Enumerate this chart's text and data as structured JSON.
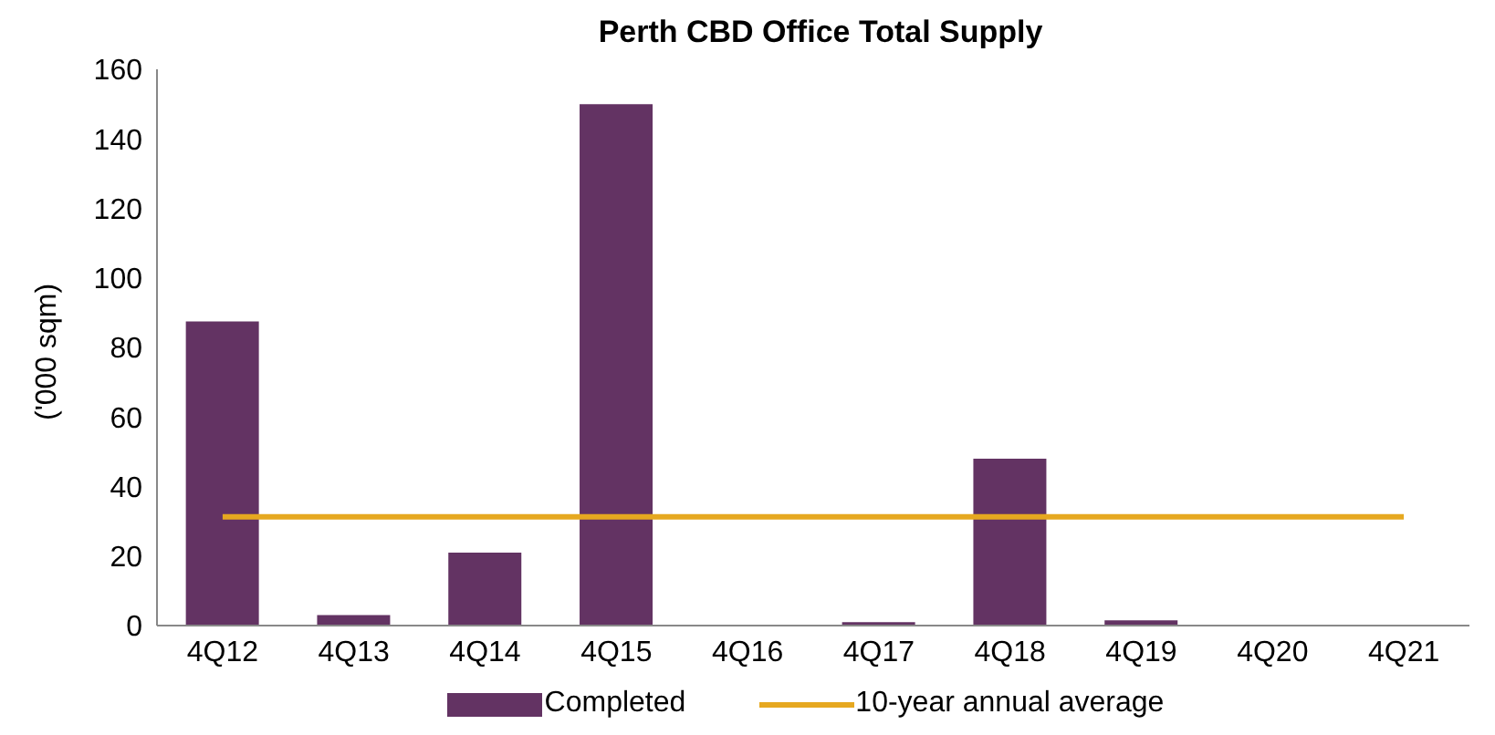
{
  "chart_data": {
    "type": "bar",
    "title": "Perth CBD Office Total Supply",
    "ylabel": "('000 sqm)",
    "categories": [
      "4Q12",
      "4Q13",
      "4Q14",
      "4Q15",
      "4Q16",
      "4Q17",
      "4Q18",
      "4Q19",
      "4Q20",
      "4Q21"
    ],
    "series": [
      {
        "name": "Completed",
        "color": "#633363",
        "values": [
          87.5,
          3,
          21,
          150,
          0,
          1,
          48,
          1.5,
          0,
          0
        ]
      },
      {
        "name": "10-year annual average",
        "type": "line",
        "color": "#e6a820",
        "values": [
          31.3,
          31.3,
          31.3,
          31.3,
          31.3,
          31.3,
          31.3,
          31.3,
          31.3,
          31.3
        ]
      }
    ],
    "ylim": [
      0,
      160
    ],
    "yticks": [
      0,
      20,
      40,
      60,
      80,
      100,
      120,
      140,
      160
    ],
    "grid": false,
    "legend": "bottom",
    "marker": "none"
  }
}
